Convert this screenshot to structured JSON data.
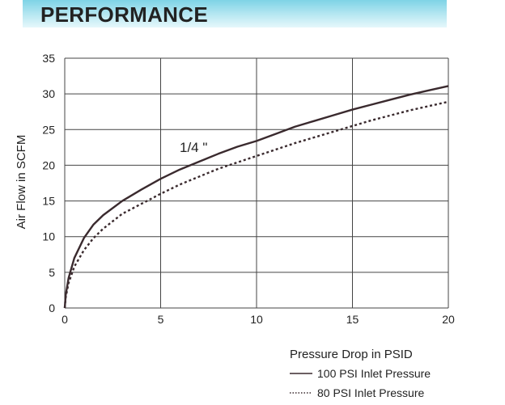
{
  "header": {
    "title": "PERFORMANCE",
    "accent_color": "#7ed3e6"
  },
  "chart_data": {
    "type": "line",
    "title": "PERFORMANCE",
    "xlabel": "Pressure Drop in PSID",
    "ylabel": "Air Flow in SCFM",
    "xlim": [
      0,
      20
    ],
    "ylim": [
      0,
      35
    ],
    "x_ticks": [
      0,
      5,
      10,
      15,
      20
    ],
    "y_ticks": [
      0,
      5,
      10,
      15,
      20,
      25,
      30,
      35
    ],
    "grid": true,
    "annotation": "1/4 \"",
    "series": [
      {
        "name": "100 PSI Inlet Pressure",
        "style": "solid",
        "color": "#3a2a2e",
        "x": [
          0,
          0.05,
          0.2,
          0.5,
          1,
          1.5,
          2,
          3,
          4,
          5,
          6,
          7,
          8,
          9,
          10,
          11,
          12,
          13,
          14,
          15,
          16,
          17,
          18,
          19,
          20
        ],
        "y": [
          0,
          1.8,
          4.2,
          7.0,
          9.8,
          11.7,
          13.0,
          15.0,
          16.6,
          18.1,
          19.4,
          20.5,
          21.6,
          22.6,
          23.4,
          24.4,
          25.4,
          26.2,
          27.0,
          27.8,
          28.5,
          29.2,
          29.9,
          30.5,
          31.1
        ]
      },
      {
        "name": "80 PSI Inlet Pressure",
        "style": "dotted",
        "color": "#3a2a2e",
        "x": [
          0,
          0.05,
          0.2,
          0.5,
          1,
          1.5,
          2,
          3,
          4,
          5,
          6,
          7,
          8,
          9,
          10,
          11,
          12,
          13,
          14,
          15,
          16,
          17,
          18,
          19,
          20
        ],
        "y": [
          0,
          1.5,
          3.5,
          5.8,
          8.1,
          9.8,
          11.1,
          13.2,
          14.6,
          16.0,
          17.3,
          18.4,
          19.5,
          20.4,
          21.3,
          22.2,
          23.1,
          23.9,
          24.7,
          25.5,
          26.3,
          27.0,
          27.7,
          28.3,
          28.9
        ]
      }
    ]
  }
}
